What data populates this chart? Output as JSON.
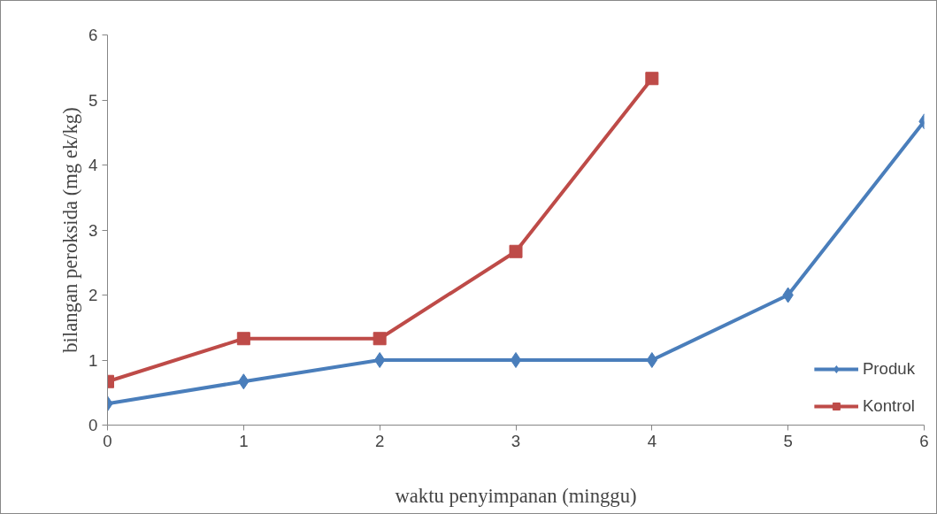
{
  "chart_data": {
    "type": "line",
    "xlabel": "waktu penyimpanan (minggu)",
    "ylabel": "bilangan peroksida (mg ek/kg)",
    "xlim": [
      0,
      6
    ],
    "xticks": [
      0,
      1,
      2,
      3,
      4,
      5,
      6
    ],
    "ylim": [
      0,
      6
    ],
    "yticks": [
      0,
      1,
      2,
      3,
      4,
      5,
      6
    ],
    "grid": false,
    "legend": "bottom right",
    "line_style": "solid",
    "series": [
      {
        "name": "Produk",
        "color": "#4a7ebb",
        "marker": "diamond",
        "x": [
          0,
          1,
          2,
          3,
          4,
          5,
          6
        ],
        "values": [
          0.33,
          0.67,
          1,
          1,
          1,
          2,
          4.67
        ]
      },
      {
        "name": "Kontrol",
        "color": "#be4b48",
        "marker": "square",
        "x": [
          0,
          1,
          2,
          3,
          4
        ],
        "values": [
          0.67,
          1.33,
          1.33,
          2.67,
          5.33
        ]
      }
    ]
  }
}
